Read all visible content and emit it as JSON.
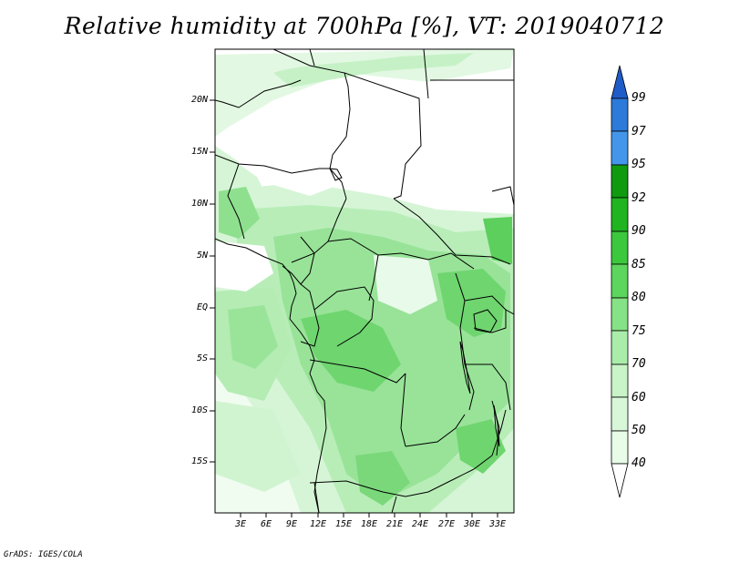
{
  "title": "Relative humidity at 700hPa [%], VT: 2019040712",
  "credit": "GrADS: IGES/COLA",
  "map": {
    "lat_labels": [
      "20N",
      "15N",
      "10N",
      "5N",
      "EQ",
      "5S",
      "10S",
      "15S"
    ],
    "lon_labels": [
      "3E",
      "6E",
      "9E",
      "12E",
      "15E",
      "18E",
      "21E",
      "24E",
      "27E",
      "30E",
      "33E"
    ]
  },
  "colorbar": {
    "labels": [
      "99",
      "97",
      "95",
      "92",
      "90",
      "85",
      "80",
      "75",
      "70",
      "60",
      "50",
      "40"
    ],
    "colors": [
      "#ffffff",
      "#e8fce8",
      "#c8f4c8",
      "#aaedaa",
      "#86e286",
      "#5cd65c",
      "#3cc83c",
      "#20b420",
      "#109a10",
      "#4496ea",
      "#2c7ada",
      "#1e5cc8"
    ]
  },
  "palette": {
    "rh_40": "#f0fcf0",
    "rh_50": "#d6f5d6",
    "rh_60": "#b4ecb4",
    "rh_70": "#8ee08e",
    "rh_80": "#62d462",
    "border": "#000000"
  }
}
